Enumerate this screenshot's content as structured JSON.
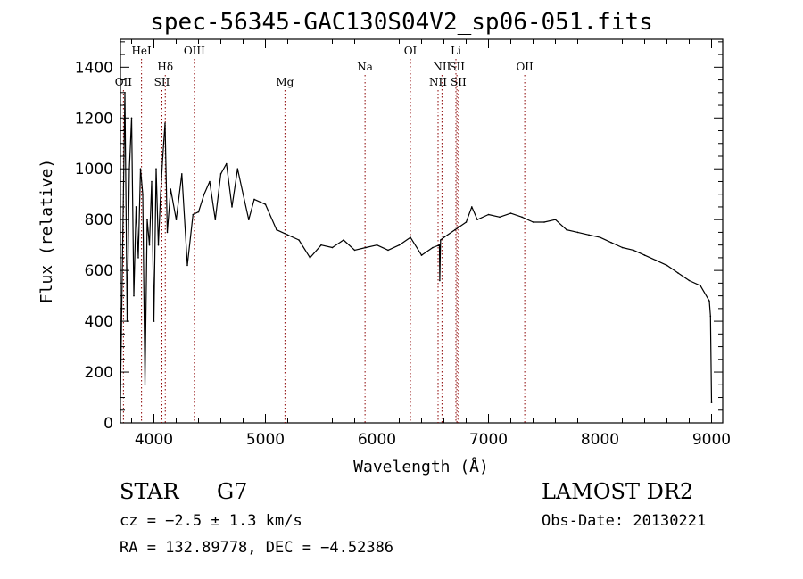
{
  "header": {
    "title": "spec-56345-GAC130S04V2_sp06-051.fits"
  },
  "info": {
    "class": "STAR",
    "subclass": "G7",
    "survey": "LAMOST DR2",
    "cz": "cz = −2.5 ± 1.3 km/s",
    "obs_date": "Obs-Date: 20130221",
    "radec": "RA = 132.89778, DEC =  −4.52386"
  },
  "colors": {
    "spectrum": "#000000",
    "line_markers": "#8b0000",
    "axes": "#000000"
  },
  "chart_data": {
    "type": "line",
    "title": "spec-56345-GAC130S04V2_sp06-051.fits",
    "xlabel": "Wavelength (Å)",
    "ylabel": "Flux (relative)",
    "xlim": [
      3700,
      9100
    ],
    "ylim": [
      0,
      1510
    ],
    "x_ticks": [
      4000,
      5000,
      6000,
      7000,
      8000,
      9000
    ],
    "x_tick_labels": [
      "4000",
      "5000",
      "6000",
      "7000",
      "8000",
      "9000"
    ],
    "y_ticks": [
      0,
      200,
      400,
      600,
      800,
      1000,
      1200,
      1400
    ],
    "y_tick_labels": [
      "0",
      "200",
      "400",
      "600",
      "800",
      "1000",
      "1200",
      "1400"
    ],
    "grid": false,
    "legend": "none",
    "series": [
      {
        "x": [
          3700,
          3720,
          3740,
          3760,
          3780,
          3800,
          3820,
          3840,
          3860,
          3880,
          3900,
          3920,
          3940,
          3960,
          3980,
          4000,
          4020,
          4040,
          4060,
          4080,
          4100,
          4120,
          4150,
          4200,
          4250,
          4300,
          4350,
          4400,
          4450,
          4500,
          4550,
          4600,
          4650,
          4700,
          4750,
          4800,
          4850,
          4900,
          5000,
          5100,
          5200,
          5300,
          5400,
          5500,
          5600,
          5700,
          5800,
          5900,
          6000,
          6100,
          6200,
          6300,
          6400,
          6500,
          6560,
          6563,
          6570,
          6600,
          6700,
          6800,
          6850,
          6900,
          7000,
          7100,
          7200,
          7300,
          7400,
          7500,
          7600,
          7700,
          7800,
          7900,
          8000,
          8100,
          8200,
          8300,
          8400,
          8500,
          8600,
          8700,
          8800,
          8900,
          8980,
          8990,
          9000
        ],
        "y": [
          100,
          700,
          1300,
          400,
          1000,
          1200,
          500,
          850,
          650,
          1000,
          900,
          150,
          800,
          700,
          950,
          400,
          1000,
          700,
          900,
          1050,
          1180,
          750,
          920,
          800,
          980,
          620,
          820,
          830,
          900,
          950,
          800,
          980,
          1020,
          850,
          1000,
          900,
          800,
          880,
          860,
          760,
          740,
          720,
          650,
          700,
          690,
          720,
          680,
          690,
          700,
          680,
          700,
          730,
          660,
          690,
          700,
          560,
          720,
          730,
          760,
          790,
          850,
          800,
          820,
          810,
          825,
          810,
          790,
          790,
          800,
          760,
          750,
          740,
          730,
          710,
          690,
          680,
          660,
          640,
          620,
          590,
          560,
          540,
          480,
          420,
          80
        ]
      }
    ],
    "line_labels": [
      {
        "name": "OII",
        "wavelength": 3727,
        "row": "low"
      },
      {
        "name": "HeI",
        "wavelength": 3889,
        "row": "high"
      },
      {
        "name": "Hδ",
        "wavelength": 4102,
        "row": "mid"
      },
      {
        "name": "SII",
        "wavelength": 4072,
        "row": "low"
      },
      {
        "name": "OIII",
        "wavelength": 4363,
        "row": "high"
      },
      {
        "name": "Mg",
        "wavelength": 5175,
        "row": "low"
      },
      {
        "name": "Na",
        "wavelength": 5893,
        "row": "mid"
      },
      {
        "name": "OI",
        "wavelength": 6300,
        "row": "high"
      },
      {
        "name": "NII",
        "wavelength": 6548,
        "row": "low"
      },
      {
        "name": "NII",
        "wavelength": 6583,
        "row": "mid"
      },
      {
        "name": "Li",
        "wavelength": 6708,
        "row": "high"
      },
      {
        "name": "SII",
        "wavelength": 6717,
        "row": "mid"
      },
      {
        "name": "SII",
        "wavelength": 6731,
        "row": "low"
      },
      {
        "name": "OII",
        "wavelength": 7325,
        "row": "mid"
      }
    ]
  }
}
